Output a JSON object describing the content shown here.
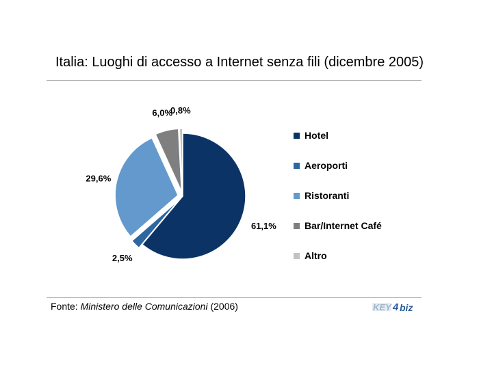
{
  "title": "Italia: Luoghi di accesso a Internet senza fili (dicembre 2005)",
  "source": {
    "prefix": "Fonte: ",
    "name": "Ministero delle Comunicazioni",
    "suffix": " (2006)"
  },
  "logo": {
    "text_a": "KEY",
    "text_b": "4",
    "text_c": "biz"
  },
  "chart_data": {
    "type": "pie",
    "title": "Italia: Luoghi di accesso a Internet senza fili (dicembre 2005)",
    "legend_position": "right",
    "slices": [
      {
        "label": "Hotel",
        "value": 61.1,
        "display": "61,1%",
        "color": "#0b3366",
        "exploded": false
      },
      {
        "label": "Aeroporti",
        "value": 2.5,
        "display": "2,5%",
        "color": "#2e66a0",
        "exploded": true
      },
      {
        "label": "Ristoranti",
        "value": 29.6,
        "display": "29,6%",
        "color": "#6399cc",
        "exploded": true
      },
      {
        "label": "Bar/Internet Café",
        "value": 6.0,
        "display": "6,0%",
        "color": "#7f7f7f",
        "exploded": true
      },
      {
        "label": "Altro",
        "value": 0.8,
        "display": "0,8%",
        "color": "#c2c2c2",
        "exploded": true
      }
    ]
  }
}
